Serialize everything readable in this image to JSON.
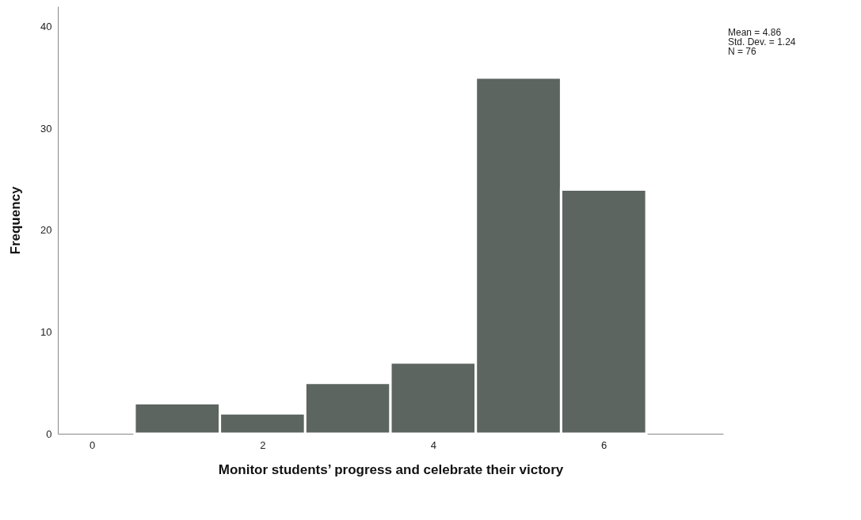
{
  "chart_data": {
    "type": "histogram",
    "xlabel": "Monitor students’ progress and celebrate their victory",
    "ylabel": "Frequency",
    "bins": [
      0.5,
      1.5,
      2.5,
      3.5,
      4.5,
      5.5,
      6.5
    ],
    "values": [
      3,
      2,
      5,
      7,
      35,
      24
    ],
    "color": "#5c6560",
    "xlim": [
      -0.4,
      7.4
    ],
    "xticks": [
      0,
      2,
      4,
      6
    ],
    "ylim": [
      0,
      42
    ],
    "yticks": [
      0,
      10,
      20,
      30,
      40
    ],
    "grid": false,
    "annotations": [
      "Mean = 4.86",
      "Std. Dev. = 1.24",
      "N = 76"
    ]
  }
}
